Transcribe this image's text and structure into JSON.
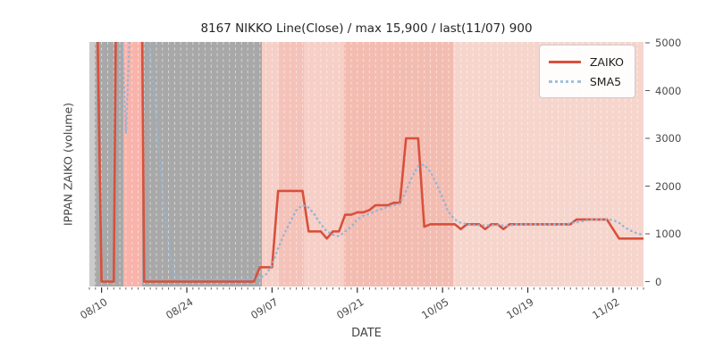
{
  "title": "8167 NIKKO Line(Close) / max 15,900 / last(11/07) 900",
  "y_axis": {
    "label": "IPPAN ZAIKO (volume)",
    "tick_labels": [
      "0",
      "1000",
      "2000",
      "3000",
      "4000",
      "5000"
    ],
    "tick_values": [
      0,
      1000,
      2000,
      3000,
      4000,
      5000
    ],
    "range": [
      0,
      5000
    ],
    "side": "right"
  },
  "x_axis": {
    "label": "DATE",
    "tick_labels": [
      "08/10",
      "08/24",
      "09/07",
      "09/21",
      "10/05",
      "10/19",
      "11/02"
    ],
    "tick_days": [
      2,
      16,
      30,
      44,
      58,
      72,
      86
    ],
    "start_date": "08/08",
    "end_date": "11/07",
    "days_total": 91,
    "minor_tick_every_days": 1
  },
  "legend": {
    "items": [
      {
        "label": "ZAIKO",
        "color": "#d8503c",
        "style": "solid"
      },
      {
        "label": "SMA5",
        "color": "#9fc0dc",
        "style": "dotted"
      }
    ],
    "position": "upper right"
  },
  "bands": [
    {
      "from_day": 0.0,
      "to_day": 0.9,
      "color": "#cbcbcb"
    },
    {
      "from_day": 0.9,
      "to_day": 28.3,
      "color": "#a8a8a8"
    },
    {
      "from_day": 5.6,
      "to_day": 8.6,
      "color": "#f8b3aa"
    },
    {
      "from_day": 28.3,
      "to_day": 31.1,
      "color": "#f6cfc7"
    },
    {
      "from_day": 31.1,
      "to_day": 35.2,
      "color": "#f4c2b8"
    },
    {
      "from_day": 35.2,
      "to_day": 41.8,
      "color": "#f6cfc7"
    },
    {
      "from_day": 41.8,
      "to_day": 59.7,
      "color": "#f3bcb1"
    },
    {
      "from_day": 59.7,
      "to_day": 91.0,
      "color": "#f6d5cd"
    }
  ],
  "grid": {
    "vertical_dashed_white": true,
    "horizontal": false
  },
  "chart_data": {
    "type": "line",
    "title": "8167 NIKKO Line(Close) / max 15,900 / last(11/07) 900",
    "xlabel": "DATE",
    "ylabel": "IPPAN ZAIKO (volume)",
    "ylim": [
      0,
      5000
    ],
    "clipped_at": 5000,
    "max_value": 15900,
    "last_point": {
      "date": "11/07",
      "value": 900
    },
    "x_unit": "days since 08/08",
    "series": [
      {
        "name": "ZAIKO",
        "color": "#d8503c",
        "style": "solid",
        "points": [
          [
            0,
            8000
          ],
          [
            1,
            8000
          ],
          [
            2,
            0
          ],
          [
            4,
            0
          ],
          [
            5,
            15900
          ],
          [
            8,
            15900
          ],
          [
            9,
            0
          ],
          [
            27,
            0
          ],
          [
            28,
            300
          ],
          [
            30,
            300
          ],
          [
            31,
            1900
          ],
          [
            35,
            1900
          ],
          [
            36,
            1050
          ],
          [
            38,
            1050
          ],
          [
            39,
            900
          ],
          [
            40,
            1050
          ],
          [
            41,
            1050
          ],
          [
            42,
            1400
          ],
          [
            43,
            1400
          ],
          [
            44,
            1450
          ],
          [
            45,
            1450
          ],
          [
            46,
            1500
          ],
          [
            47,
            1600
          ],
          [
            49,
            1600
          ],
          [
            50,
            1650
          ],
          [
            51,
            1650
          ],
          [
            52,
            3000
          ],
          [
            54,
            3000
          ],
          [
            55,
            1150
          ],
          [
            56,
            1200
          ],
          [
            60,
            1200
          ],
          [
            61,
            1100
          ],
          [
            62,
            1200
          ],
          [
            64,
            1200
          ],
          [
            65,
            1100
          ],
          [
            66,
            1200
          ],
          [
            67,
            1200
          ],
          [
            68,
            1100
          ],
          [
            69,
            1200
          ],
          [
            79,
            1200
          ],
          [
            80,
            1300
          ],
          [
            85,
            1300
          ],
          [
            86,
            1100
          ],
          [
            87,
            900
          ],
          [
            91,
            900
          ]
        ]
      },
      {
        "name": "SMA5",
        "color": "#92b5d5",
        "style": "dotted",
        "points": [
          [
            0,
            6500
          ],
          [
            5,
            6500
          ],
          [
            6,
            3100
          ],
          [
            7,
            6500
          ],
          [
            9,
            6500
          ],
          [
            10,
            4800
          ],
          [
            11,
            3400
          ],
          [
            12,
            1900
          ],
          [
            13,
            700
          ],
          [
            14,
            150
          ],
          [
            15,
            60
          ],
          [
            27,
            60
          ],
          [
            28,
            80
          ],
          [
            29,
            150
          ],
          [
            30,
            350
          ],
          [
            31,
            700
          ],
          [
            32,
            1000
          ],
          [
            33,
            1250
          ],
          [
            34,
            1500
          ],
          [
            35,
            1600
          ],
          [
            36,
            1550
          ],
          [
            37,
            1400
          ],
          [
            38,
            1200
          ],
          [
            39,
            1050
          ],
          [
            40,
            980
          ],
          [
            41,
            950
          ],
          [
            42,
            1050
          ],
          [
            43,
            1150
          ],
          [
            44,
            1300
          ],
          [
            45,
            1380
          ],
          [
            46,
            1420
          ],
          [
            47,
            1480
          ],
          [
            48,
            1520
          ],
          [
            49,
            1560
          ],
          [
            50,
            1600
          ],
          [
            51,
            1630
          ],
          [
            52,
            1900
          ],
          [
            53,
            2200
          ],
          [
            54,
            2420
          ],
          [
            55,
            2450
          ],
          [
            56,
            2300
          ],
          [
            57,
            2050
          ],
          [
            58,
            1750
          ],
          [
            59,
            1450
          ],
          [
            60,
            1300
          ],
          [
            61,
            1230
          ],
          [
            62,
            1200
          ],
          [
            63,
            1180
          ],
          [
            65,
            1180
          ],
          [
            67,
            1180
          ],
          [
            69,
            1170
          ],
          [
            70,
            1200
          ],
          [
            78,
            1200
          ],
          [
            80,
            1240
          ],
          [
            82,
            1290
          ],
          [
            83,
            1300
          ],
          [
            85,
            1300
          ],
          [
            86,
            1290
          ],
          [
            87,
            1230
          ],
          [
            88,
            1130
          ],
          [
            89,
            1060
          ],
          [
            90,
            1010
          ],
          [
            91,
            980
          ]
        ]
      }
    ]
  }
}
